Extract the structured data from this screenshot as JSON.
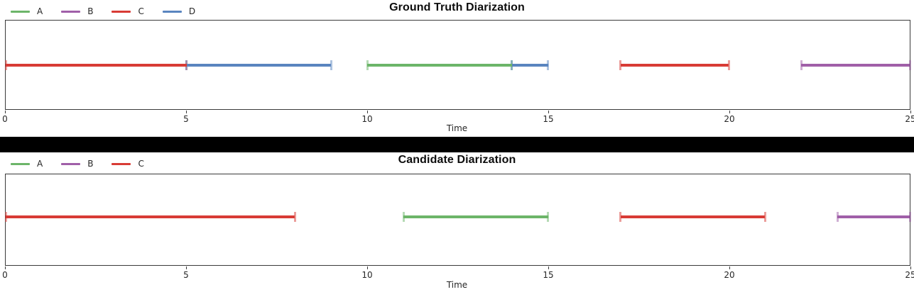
{
  "palette": {
    "A": "#6cb569",
    "B": "#a05fa8",
    "C": "#d83b35",
    "D": "#5a85bf"
  },
  "axis": {
    "min": 0,
    "max": 25,
    "ticks": [
      0,
      5,
      10,
      15,
      20,
      25
    ]
  },
  "chart_data": [
    {
      "type": "timeline",
      "title": "Ground Truth Diarization",
      "xlabel": "Time",
      "xlim": [
        0,
        25
      ],
      "legend": [
        "A",
        "B",
        "C",
        "D"
      ],
      "legend_position": "upper-left",
      "grid": false,
      "segments": [
        {
          "speaker": "C",
          "start": 0,
          "end": 5
        },
        {
          "speaker": "D",
          "start": 5,
          "end": 9
        },
        {
          "speaker": "A",
          "start": 10,
          "end": 14
        },
        {
          "speaker": "D",
          "start": 14,
          "end": 15
        },
        {
          "speaker": "C",
          "start": 17,
          "end": 20
        },
        {
          "speaker": "B",
          "start": 22,
          "end": 25
        }
      ]
    },
    {
      "type": "timeline",
      "title": "Candidate Diarization",
      "xlabel": "Time",
      "xlim": [
        0,
        25
      ],
      "legend": [
        "A",
        "B",
        "C"
      ],
      "legend_position": "upper-left",
      "grid": false,
      "segments": [
        {
          "speaker": "C",
          "start": 0,
          "end": 8
        },
        {
          "speaker": "A",
          "start": 11,
          "end": 15
        },
        {
          "speaker": "C",
          "start": 17,
          "end": 21
        },
        {
          "speaker": "B",
          "start": 23,
          "end": 25
        }
      ]
    }
  ]
}
